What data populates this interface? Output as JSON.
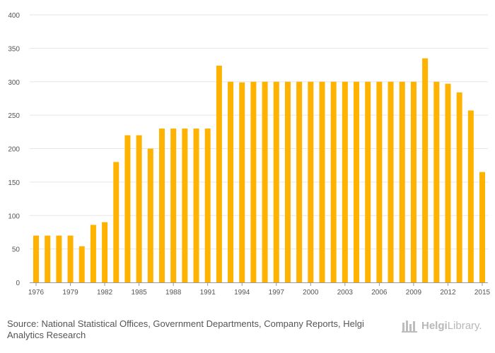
{
  "chart_data": {
    "type": "bar",
    "title": "",
    "xlabel": "",
    "ylabel": "",
    "ylim": [
      0,
      400
    ],
    "yticks": [
      "0",
      "50",
      "100",
      "150",
      "200",
      "250",
      "300",
      "350",
      "400"
    ],
    "x": [
      1976,
      1977,
      1978,
      1979,
      1980,
      1981,
      1982,
      1983,
      1984,
      1985,
      1986,
      1987,
      1988,
      1989,
      1990,
      1991,
      1992,
      1993,
      1994,
      1995,
      1996,
      1997,
      1998,
      1999,
      2000,
      2001,
      2002,
      2003,
      2004,
      2005,
      2006,
      2007,
      2008,
      2009,
      2010,
      2011,
      2012,
      2013,
      2014,
      2015
    ],
    "values": [
      70,
      70,
      70,
      70,
      54,
      86,
      90,
      180,
      220,
      220,
      200,
      230,
      230,
      230,
      230,
      230,
      324,
      300,
      299,
      300,
      300,
      300,
      300,
      300,
      300,
      300,
      300,
      300,
      300,
      300,
      300,
      300,
      300,
      300,
      335,
      300,
      297,
      284,
      257,
      165
    ],
    "xticks": [
      "1976",
      "1979",
      "1982",
      "1985",
      "1988",
      "1991",
      "1994",
      "1997",
      "2000",
      "2003",
      "2006",
      "2009",
      "2012",
      "2015"
    ],
    "bar_color": "#FFB300",
    "grid": true
  },
  "footer": {
    "source_label": "Source:",
    "source_text": "National Statistical Offices, Government Departments, Company Reports, Helgi Analytics Research"
  },
  "logo": {
    "part1": "Helgi",
    "part2": "Library."
  },
  "colors": {
    "grid": "#e6e6e6",
    "axis": "#999999",
    "text": "#555555",
    "logo": "#b8b8b8"
  }
}
